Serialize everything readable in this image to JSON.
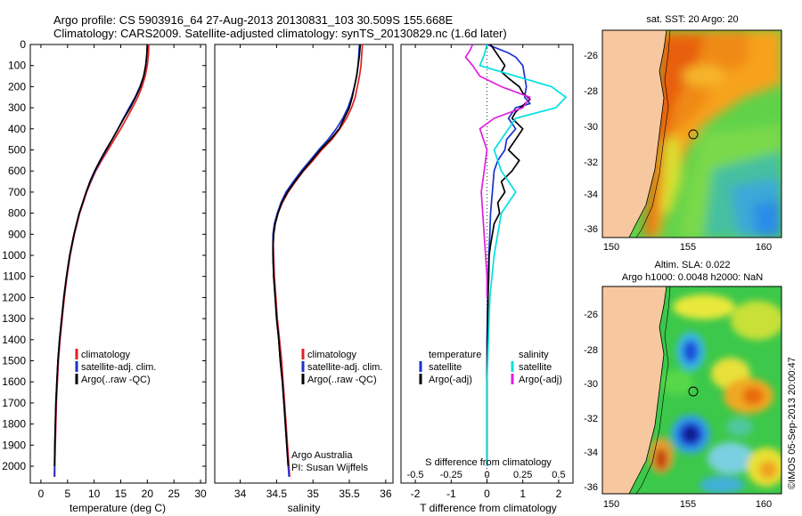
{
  "header": {
    "line1": "Argo profile: CS 5903916_64 27-Aug-2013 20130831_103 30.509S 155.668E",
    "line2": "Climatology: CARS2009. Satellite-adjusted climatology: synTS_20130829.nc (1.6d later)"
  },
  "colors": {
    "climatology": "#e02020",
    "satellite": "#1a33cc",
    "argo": "#000000",
    "sal_sat": "#00e0e0",
    "sal_argo": "#e020e0"
  },
  "chart_data": [
    {
      "type": "line",
      "name": "temperature-profile",
      "xlabel": "temperature (deg C)",
      "xlim": [
        -2,
        31
      ],
      "ylim": [
        2080,
        0
      ],
      "xticks": [
        0,
        5,
        10,
        15,
        20,
        25,
        30
      ],
      "yticks": [
        0,
        100,
        200,
        300,
        400,
        500,
        600,
        700,
        800,
        900,
        1000,
        1100,
        1200,
        1300,
        1400,
        1500,
        1600,
        1700,
        1800,
        1900,
        2000
      ],
      "legend": [
        "climatology",
        "satellite-adj. clim.",
        "Argo(..raw -QC)"
      ],
      "series": [
        {
          "name": "climatology",
          "color": "climatology",
          "depth": [
            0,
            50,
            100,
            150,
            200,
            250,
            300,
            350,
            400,
            450,
            500,
            550,
            600,
            650,
            700,
            800,
            900,
            1000,
            1100,
            1200,
            1300,
            1400,
            1500,
            1600,
            1700,
            1800,
            1900,
            2000,
            2050
          ],
          "values": [
            20.3,
            20.2,
            20.0,
            19.6,
            19.0,
            18.2,
            17.2,
            16.1,
            15.0,
            13.8,
            12.6,
            11.4,
            10.3,
            9.4,
            8.6,
            7.3,
            6.3,
            5.5,
            4.9,
            4.4,
            4.0,
            3.6,
            3.3,
            3.1,
            2.9,
            2.8,
            2.7,
            2.6,
            2.6
          ]
        },
        {
          "name": "satellite-adj. clim.",
          "color": "satellite",
          "depth": [
            0,
            50,
            100,
            150,
            200,
            250,
            300,
            350,
            400,
            450,
            500,
            550,
            600,
            650,
            700,
            800,
            900,
            1000,
            1100,
            1200,
            1300,
            1400,
            1500,
            1600,
            1700,
            1800,
            1900,
            2000,
            2050
          ],
          "values": [
            20.0,
            19.9,
            19.7,
            19.3,
            18.6,
            17.7,
            16.6,
            15.5,
            14.5,
            13.4,
            12.3,
            11.2,
            10.2,
            9.3,
            8.5,
            7.2,
            6.2,
            5.4,
            4.8,
            4.3,
            3.9,
            3.5,
            3.2,
            3.0,
            2.8,
            2.7,
            2.6,
            2.55,
            2.5
          ]
        },
        {
          "name": "Argo(..raw -QC)",
          "color": "argo",
          "depth": [
            0,
            50,
            100,
            150,
            200,
            250,
            300,
            350,
            400,
            450,
            500,
            550,
            600,
            650,
            700,
            800,
            900,
            1000,
            1100,
            1200,
            1300,
            1400,
            1500,
            1600,
            1700,
            1800,
            1900,
            2000
          ],
          "values": [
            20.0,
            19.9,
            19.7,
            19.3,
            18.7,
            17.8,
            16.8,
            15.6,
            14.5,
            13.4,
            12.2,
            11.1,
            10.1,
            9.2,
            8.5,
            7.2,
            6.2,
            5.4,
            4.8,
            4.3,
            3.9,
            3.5,
            3.2,
            3.0,
            2.8,
            2.7,
            2.6,
            2.55
          ]
        }
      ]
    },
    {
      "type": "line",
      "name": "salinity-profile",
      "xlabel": "salinity",
      "xlim": [
        33.65,
        36.1
      ],
      "ylim": [
        2080,
        0
      ],
      "xticks": [
        34,
        34.5,
        35,
        35.5,
        36
      ],
      "xticklabels": [
        "34",
        "34.5",
        "35",
        "35.5",
        "36"
      ],
      "legend": [
        "climatology",
        "satellite-adj. clim.",
        "Argo(..raw -QC)"
      ],
      "annotations": [
        "Argo Australia",
        "PI: Susan Wijffels"
      ],
      "series": [
        {
          "name": "climatology",
          "color": "climatology",
          "depth": [
            0,
            50,
            100,
            150,
            200,
            250,
            300,
            350,
            400,
            450,
            500,
            550,
            600,
            650,
            700,
            750,
            800,
            850,
            900,
            950,
            1000,
            1100,
            1200,
            1300,
            1400,
            1500,
            1600,
            1700,
            1800,
            1900,
            2000,
            2050
          ],
          "values": [
            35.68,
            35.67,
            35.66,
            35.64,
            35.61,
            35.58,
            35.53,
            35.46,
            35.37,
            35.26,
            35.12,
            35.0,
            34.87,
            34.76,
            34.66,
            34.58,
            34.52,
            34.48,
            34.46,
            34.455,
            34.46,
            34.47,
            34.49,
            34.51,
            34.54,
            34.57,
            34.59,
            34.61,
            34.63,
            34.65,
            34.67,
            34.68
          ]
        },
        {
          "name": "satellite-adj. clim.",
          "color": "satellite",
          "depth": [
            0,
            50,
            100,
            150,
            200,
            250,
            300,
            350,
            400,
            450,
            500,
            550,
            600,
            650,
            700,
            750,
            800,
            850,
            900,
            950,
            1000,
            1100,
            1200,
            1300,
            1400,
            1500,
            1600,
            1700,
            1800,
            1900,
            2000,
            2050
          ],
          "values": [
            35.64,
            35.63,
            35.62,
            35.6,
            35.57,
            35.53,
            35.48,
            35.41,
            35.32,
            35.21,
            35.08,
            34.96,
            34.84,
            34.73,
            34.63,
            34.56,
            34.51,
            34.47,
            34.45,
            34.45,
            34.45,
            34.46,
            34.48,
            34.5,
            34.53,
            34.55,
            34.58,
            34.6,
            34.62,
            34.64,
            34.66,
            34.67
          ]
        },
        {
          "name": "Argo(..raw -QC)",
          "color": "argo",
          "depth": [
            0,
            50,
            100,
            150,
            200,
            250,
            300,
            350,
            400,
            450,
            500,
            550,
            600,
            650,
            700,
            750,
            800,
            850,
            900,
            950,
            1000,
            1100,
            1200,
            1300,
            1400,
            1500,
            1600,
            1700,
            1800,
            1900,
            2000
          ],
          "values": [
            35.65,
            35.64,
            35.62,
            35.6,
            35.57,
            35.54,
            35.5,
            35.43,
            35.36,
            35.24,
            35.1,
            34.98,
            34.86,
            34.75,
            34.65,
            34.57,
            34.52,
            34.48,
            34.46,
            34.45,
            34.45,
            34.46,
            34.48,
            34.5,
            34.53,
            34.55,
            34.58,
            34.6,
            34.62,
            34.64,
            34.66
          ]
        }
      ]
    },
    {
      "type": "line",
      "name": "difference-profile",
      "xlabel": "T difference from climatology",
      "xlabel_top": "S difference from climatology",
      "xlim": [
        -2.4,
        2.4
      ],
      "ylim": [
        2080,
        0
      ],
      "xticks": [
        -2,
        -1,
        0,
        1,
        2
      ],
      "xticks_top": [
        -0.5,
        -0.25,
        0,
        0.25,
        0.5
      ],
      "legend_left": {
        "title": "temperature",
        "items": [
          "satellite",
          "Argo(-adj)"
        ]
      },
      "legend_right": {
        "title": "salinity",
        "items": [
          "satellite",
          "Argo(-adj)"
        ]
      },
      "series": [
        {
          "name": "temperature satellite",
          "color": "satellite",
          "depth": [
            0,
            20,
            40,
            60,
            80,
            100,
            150,
            200,
            250,
            280,
            300,
            350,
            400,
            450,
            500,
            550,
            600,
            700,
            800,
            900,
            1000,
            1200,
            1400,
            1600,
            1800,
            2000
          ],
          "values": [
            0.0,
            0.3,
            0.6,
            0.8,
            0.9,
            1.0,
            1.05,
            1.1,
            1.05,
            1.2,
            0.8,
            0.6,
            0.8,
            0.55,
            0.5,
            0.3,
            0.2,
            0.15,
            0.1,
            0.08,
            0.05,
            0.02,
            0.0,
            0.0,
            0.0,
            0.0
          ]
        },
        {
          "name": "temperature Argo(-adj)",
          "color": "argo",
          "depth": [
            0,
            50,
            100,
            130,
            160,
            200,
            230,
            260,
            290,
            320,
            350,
            400,
            450,
            500,
            550,
            600,
            650,
            700,
            750,
            800,
            850,
            900,
            950,
            1000,
            1100,
            1200,
            1400,
            1600,
            1800,
            2000
          ],
          "values": [
            0.1,
            0.3,
            0.5,
            0.4,
            0.6,
            0.9,
            1.0,
            1.2,
            1.0,
            0.8,
            0.7,
            1.0,
            0.8,
            0.6,
            0.9,
            0.7,
            0.4,
            0.5,
            0.3,
            0.35,
            0.2,
            0.15,
            0.1,
            0.06,
            0.05,
            0.03,
            0.01,
            0.0,
            0.0,
            0.0
          ]
        },
        {
          "name": "salinity satellite",
          "color": "sal_sat",
          "depth": [
            0,
            50,
            100,
            150,
            200,
            250,
            300,
            350,
            400,
            500,
            600,
            700,
            800,
            1000,
            1200,
            1400,
            1600,
            1800,
            2000
          ],
          "values": [
            0.0,
            -0.02,
            -0.05,
            0.2,
            0.45,
            0.55,
            0.48,
            0.2,
            0.15,
            0.05,
            0.1,
            0.2,
            0.1,
            0.05,
            0.02,
            0.01,
            0.0,
            0.0,
            0.0
          ]
        },
        {
          "name": "salinity Argo(-adj)",
          "color": "sal_argo",
          "depth": [
            0,
            30,
            60,
            100,
            150,
            200,
            250,
            300,
            350,
            400,
            500,
            600,
            700,
            800,
            900,
            1000,
            1100,
            1200
          ],
          "values": [
            -0.1,
            -0.12,
            -0.15,
            -0.1,
            -0.05,
            0.1,
            0.3,
            0.25,
            0.05,
            -0.05,
            0.0,
            -0.02,
            -0.04,
            -0.03,
            -0.02,
            -0.01,
            0.0,
            0.0
          ]
        }
      ]
    }
  ],
  "maps": {
    "sst": {
      "title": "sat. SST: 20 Argo: 20",
      "yticks": [
        "-26",
        "-28",
        "-30",
        "-32",
        "-34",
        "-36"
      ],
      "xticks": [
        "150",
        "155",
        "160"
      ]
    },
    "sla": {
      "title1": "Altim. SLA: 0.022",
      "title2": "Argo h1000: 0.0048 h2000: NaN",
      "yticks": [
        "-26",
        "-28",
        "-30",
        "-32",
        "-34",
        "-36"
      ],
      "xticks": [
        "150",
        "155",
        "160"
      ]
    }
  },
  "footer": {
    "stamp": "©IMOS 05-Sep-2013 20:00:47"
  }
}
